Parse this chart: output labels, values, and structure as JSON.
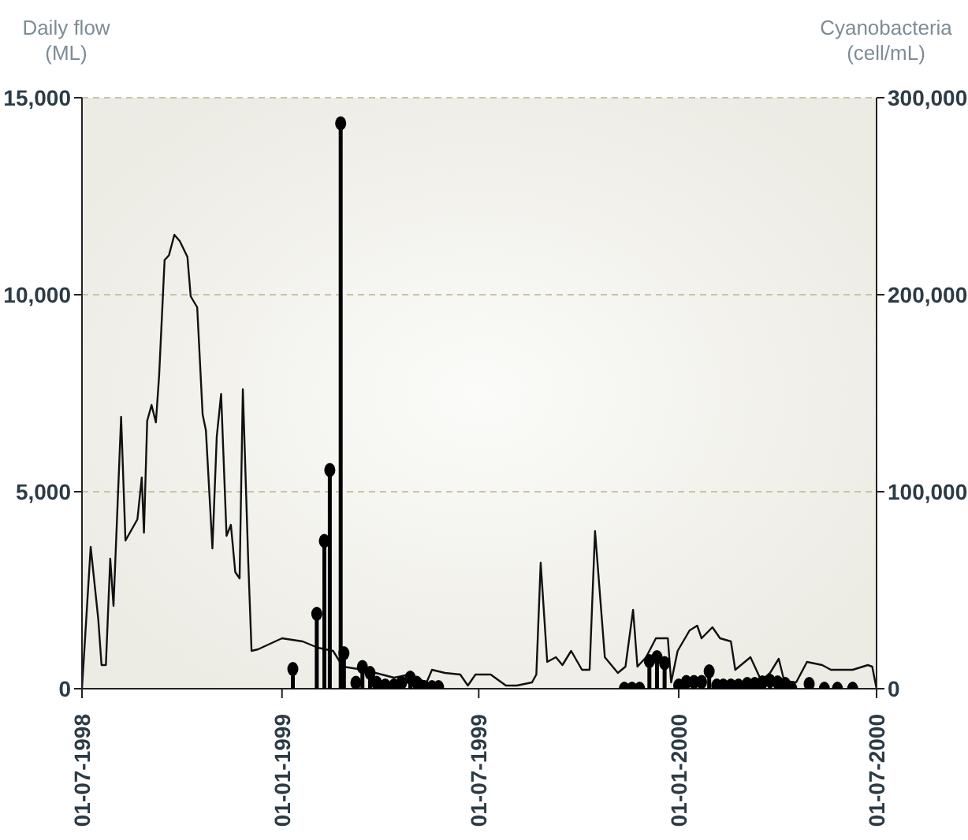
{
  "chart_data": {
    "type": "line",
    "ylabel": "Daily flow (ML)",
    "y2label": "Cyanobacteria (cell/mL)",
    "ylim": [
      0,
      15000
    ],
    "yticks": [
      0,
      {
        "value": 5000,
        "label": "5,000"
      },
      {
        "value": 10000,
        "label": "10,000"
      },
      {
        "value": 15000,
        "label": "15,000"
      }
    ],
    "y2lim": [
      0,
      300000
    ],
    "y2ticks": [
      0,
      {
        "value": 100000,
        "label": "100,000"
      },
      {
        "value": 200000,
        "label": "200,000"
      },
      {
        "value": 300000,
        "label": "300,000"
      }
    ],
    "xlim": [
      "1998-07-01",
      "2000-07-01"
    ],
    "xticks": [
      {
        "value": "1998-07-01",
        "label": "01-07-1998"
      },
      {
        "value": "1999-01-01",
        "label": "01-01-1999"
      },
      {
        "value": "1999-07-01",
        "label": "01-07-1999"
      },
      {
        "value": "2000-01-01",
        "label": "01-01-2000"
      },
      {
        "value": "2000-07-01",
        "label": "01-07-2000"
      }
    ],
    "grid": "y",
    "series": [
      {
        "color": "#111111",
        "x": [
          "1998-07-01",
          "1998-07-09",
          "1998-07-16",
          "1998-07-19",
          "1998-07-23",
          "1998-07-27",
          "1998-07-30",
          "1998-08-06",
          "1998-08-10",
          "1998-08-21",
          "1998-08-25",
          "1998-08-27",
          "1998-08-30",
          "1998-09-03",
          "1998-09-07",
          "1998-09-10",
          "1998-09-15",
          "1998-09-19",
          "1998-09-24",
          "1998-09-29",
          "1998-10-06",
          "1998-10-09",
          "1998-10-15",
          "1998-10-20",
          "1998-10-23",
          "1998-10-29",
          "1998-11-02",
          "1998-11-06",
          "1998-11-11",
          "1998-11-15",
          "1998-11-19",
          "1998-11-23",
          "1998-11-26",
          "1998-12-01",
          "1998-12-04",
          "1998-12-10",
          "1999-01-01",
          "1999-01-20",
          "1999-02-03",
          "1999-02-17",
          "1999-02-26",
          "1999-03-17",
          "1999-04-14",
          "1999-04-28",
          "1999-05-14",
          "1999-05-19",
          "1999-05-31",
          "1999-06-14",
          "1999-06-21",
          "1999-06-28",
          "1999-07-12",
          "1999-07-26",
          "1999-08-05",
          "1999-08-19",
          "1999-08-23",
          "1999-08-27",
          "1999-09-02",
          "1999-09-10",
          "1999-09-16",
          "1999-09-24",
          "1999-10-04",
          "1999-10-11",
          "1999-10-16",
          "1999-10-25",
          "1999-11-06",
          "1999-11-13",
          "1999-11-20",
          "1999-11-24",
          "1999-12-02",
          "1999-12-11",
          "1999-12-22",
          "1999-12-25",
          "1999-12-31",
          "2000-01-11",
          "2000-01-18",
          "2000-01-22",
          "2000-02-01",
          "2000-02-08",
          "2000-02-18",
          "2000-02-22",
          "2000-03-07",
          "2000-03-17",
          "2000-03-25",
          "2000-04-02",
          "2000-04-07",
          "2000-04-18",
          "2000-04-28",
          "2000-05-12",
          "2000-05-20",
          "2000-06-09",
          "2000-06-23",
          "2000-06-27",
          "2000-07-01"
        ],
        "values": [
          0,
          3600,
          1760,
          600,
          600,
          3300,
          2100,
          6900,
          3760,
          4300,
          5360,
          3960,
          6800,
          7200,
          6760,
          7960,
          10880,
          11000,
          11520,
          11360,
          10960,
          9960,
          9680,
          6960,
          6560,
          3560,
          6400,
          7480,
          3880,
          4160,
          2960,
          2800,
          7600,
          3200,
          960,
          1000,
          1280,
          1200,
          1040,
          960,
          560,
          480,
          280,
          360,
          160,
          480,
          400,
          360,
          80,
          360,
          360,
          80,
          80,
          160,
          360,
          3200,
          680,
          800,
          600,
          960,
          480,
          480,
          4000,
          800,
          400,
          560,
          2000,
          560,
          800,
          1280,
          1280,
          160,
          960,
          1480,
          1600,
          1280,
          1560,
          1280,
          1200,
          480,
          800,
          200,
          400,
          760,
          200,
          160,
          680,
          600,
          480,
          480,
          600,
          560,
          0
        ]
      },
      {
        "type": "lollipop",
        "axis": "y2",
        "color": "#000000",
        "x": [
          "1999-01-11",
          "1999-02-02",
          "1999-02-09",
          "1999-02-14",
          "1999-02-24",
          "1999-02-27",
          "1999-03-10",
          "1999-03-16",
          "1999-03-23",
          "1999-03-29",
          "1999-04-06",
          "1999-04-14",
          "1999-04-21",
          "1999-04-29",
          "1999-05-05",
          "1999-05-12",
          "1999-05-19",
          "1999-05-25",
          "1999-11-12",
          "1999-11-19",
          "1999-11-26",
          "1999-12-05",
          "1999-12-12",
          "1999-12-19",
          "2000-01-01",
          "2000-01-08",
          "2000-01-15",
          "2000-01-22",
          "2000-01-29",
          "2000-02-05",
          "2000-02-11",
          "2000-02-18",
          "2000-02-25",
          "2000-03-04",
          "2000-03-11",
          "2000-03-18",
          "2000-03-25",
          "2000-04-01",
          "2000-04-08",
          "2000-04-14",
          "2000-04-30",
          "2000-05-14",
          "2000-05-26",
          "2000-06-09"
        ],
        "values": [
          10000,
          38000,
          75000,
          111000,
          287000,
          18000,
          3000,
          11000,
          8000,
          3000,
          1600,
          1600,
          3000,
          5600,
          3000,
          800,
          800,
          800,
          0,
          0,
          0,
          14000,
          16000,
          13000,
          1600,
          3400,
          3400,
          3400,
          8800,
          1600,
          1600,
          1600,
          1600,
          2400,
          2400,
          3200,
          4000,
          3200,
          2400,
          0,
          2400,
          0,
          0,
          0
        ]
      }
    ]
  }
}
